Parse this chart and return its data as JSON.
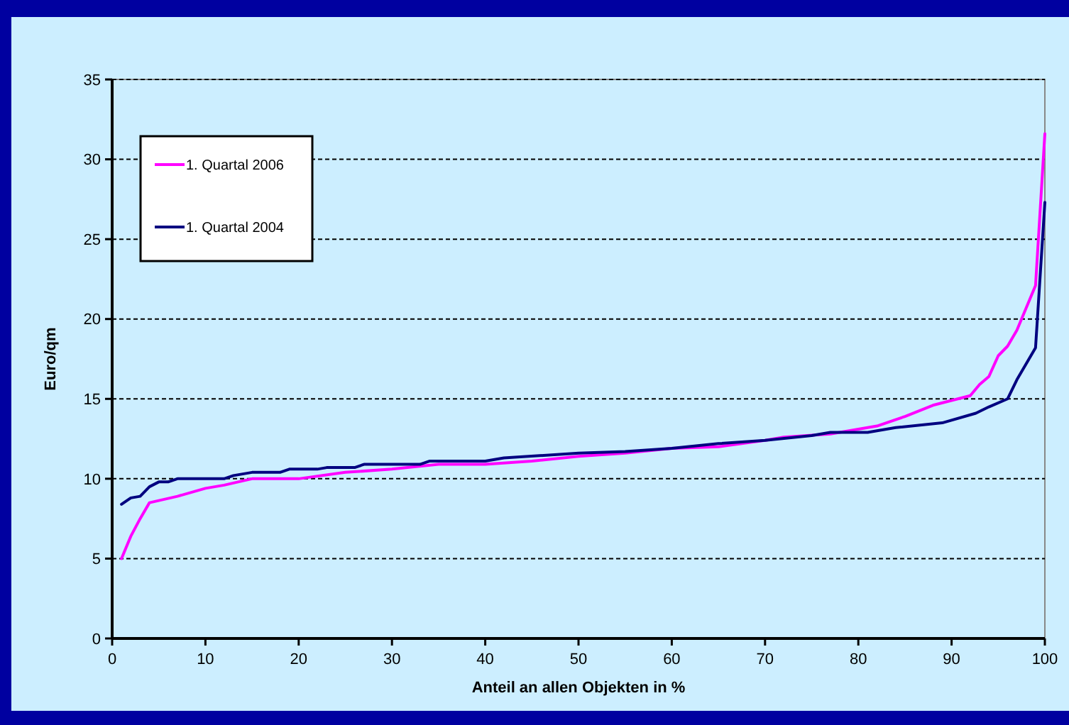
{
  "chart_data": {
    "type": "line",
    "xlabel": "Anteil an allen Objekten in %",
    "ylabel": "Euro/qm",
    "xlim": [
      0,
      100
    ],
    "xticks": [
      0,
      10,
      20,
      30,
      40,
      50,
      60,
      70,
      80,
      90,
      100
    ],
    "ylim": [
      0,
      35
    ],
    "yticks": [
      0,
      5,
      10,
      15,
      20,
      25,
      30,
      35
    ],
    "grid": "y",
    "legend": "top left",
    "marker": "none",
    "line_style": "solid",
    "series": [
      {
        "name": "1. Quartal 2006",
        "color": "#ff00ff",
        "x": [
          1,
          2,
          3,
          4,
          7,
          10,
          12,
          15,
          20,
          25,
          30,
          35,
          40,
          45,
          50,
          55,
          60,
          65,
          70,
          72,
          77,
          80,
          82,
          85,
          88,
          90,
          92,
          93,
          94,
          95,
          96,
          97,
          98,
          99,
          100
        ],
        "values": [
          5.0,
          6.4,
          7.5,
          8.5,
          8.9,
          9.4,
          9.6,
          10.0,
          10.0,
          10.4,
          10.6,
          10.9,
          10.9,
          11.1,
          11.4,
          11.6,
          11.9,
          12.0,
          12.4,
          12.6,
          12.8,
          13.1,
          13.3,
          13.9,
          14.6,
          14.9,
          15.2,
          15.9,
          16.4,
          17.7,
          18.3,
          19.3,
          20.7,
          22.1,
          31.6
        ]
      },
      {
        "name": "1. Quartal 2004",
        "color": "#000080",
        "x": [
          1,
          2,
          3,
          4,
          5,
          6,
          7,
          12,
          13,
          15,
          18,
          19,
          22,
          23,
          26,
          27,
          33,
          34,
          40,
          42,
          50,
          55,
          60,
          65,
          70,
          75,
          77,
          81,
          84,
          89,
          92.6,
          94,
          96,
          97,
          99,
          100
        ],
        "values": [
          8.4,
          8.8,
          8.9,
          9.5,
          9.8,
          9.8,
          10.0,
          10.0,
          10.2,
          10.4,
          10.4,
          10.6,
          10.6,
          10.7,
          10.7,
          10.9,
          10.9,
          11.1,
          11.1,
          11.3,
          11.6,
          11.7,
          11.9,
          12.2,
          12.4,
          12.7,
          12.9,
          12.9,
          13.2,
          13.5,
          14.1,
          14.5,
          15.0,
          16.2,
          18.2,
          27.3
        ]
      }
    ]
  }
}
